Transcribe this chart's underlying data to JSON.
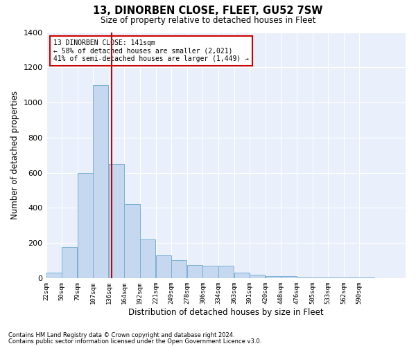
{
  "title": "13, DINORBEN CLOSE, FLEET, GU52 7SW",
  "subtitle": "Size of property relative to detached houses in Fleet",
  "xlabel": "Distribution of detached houses by size in Fleet",
  "ylabel": "Number of detached properties",
  "footnote1": "Contains HM Land Registry data © Crown copyright and database right 2024.",
  "footnote2": "Contains public sector information licensed under the Open Government Licence v3.0.",
  "annotation_line1": "13 DINORBEN CLOSE: 141sqm",
  "annotation_line2": "← 58% of detached houses are smaller (2,021)",
  "annotation_line3": "41% of semi-detached houses are larger (1,449) →",
  "bin_labels": [
    "22sqm",
    "50sqm",
    "79sqm",
    "107sqm",
    "136sqm",
    "164sqm",
    "192sqm",
    "221sqm",
    "249sqm",
    "278sqm",
    "306sqm",
    "334sqm",
    "363sqm",
    "391sqm",
    "420sqm",
    "448sqm",
    "476sqm",
    "505sqm",
    "533sqm",
    "562sqm",
    "590sqm"
  ],
  "bar_values": [
    30,
    175,
    600,
    1100,
    650,
    420,
    220,
    130,
    100,
    75,
    70,
    70,
    30,
    20,
    10,
    10,
    5,
    5,
    5,
    5,
    5
  ],
  "bar_color": "#c5d8f0",
  "bar_edge_color": "#7aafd4",
  "vline_color": "#cc0000",
  "ylim": [
    0,
    1400
  ],
  "bg_color": "#eaf0fb",
  "grid_color": "#ffffff",
  "annotation_box_color": "#ffffff",
  "annotation_box_edge": "#cc0000",
  "bin_starts": [
    22,
    50,
    79,
    107,
    136,
    164,
    192,
    221,
    249,
    278,
    306,
    334,
    363,
    391,
    420,
    448,
    476,
    505,
    533,
    562,
    590
  ],
  "bin_step": 28,
  "vline_x_data": 141
}
